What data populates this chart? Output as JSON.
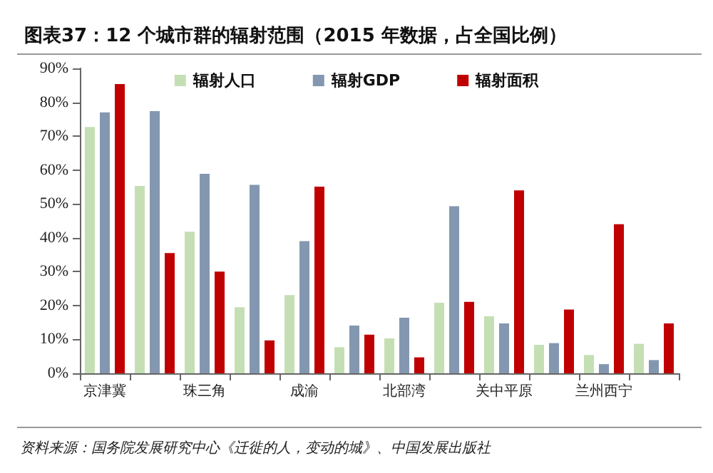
{
  "chart_data": {
    "type": "bar",
    "title": "图表37：12 个城市群的辐射范围（2015 年数据，占全国比例）",
    "categories": [
      "京津冀",
      null,
      "珠三角",
      null,
      "成渝",
      null,
      "北部湾",
      null,
      "关中平原",
      null,
      "兰州西宁",
      null
    ],
    "series": [
      {
        "name": "辐射人口",
        "color": "#c5dfb4",
        "values": [
          72.7,
          55.3,
          41.8,
          19.5,
          23.1,
          7.7,
          10.3,
          20.8,
          16.8,
          8.4,
          5.4,
          8.7
        ]
      },
      {
        "name": "辐射GDP",
        "color": "#8497b0",
        "values": [
          77.0,
          77.4,
          58.9,
          55.6,
          39.0,
          14.1,
          16.4,
          49.3,
          14.7,
          8.9,
          2.7,
          3.9
        ]
      },
      {
        "name": "辐射面积",
        "color": "#c00000",
        "values": [
          85.4,
          35.5,
          30.0,
          9.7,
          55.1,
          11.4,
          4.7,
          21.1,
          54.0,
          18.8,
          44.0,
          14.7
        ]
      }
    ],
    "ylim": [
      0,
      90
    ],
    "yticks": [
      {
        "value": 0,
        "label": "0%"
      },
      {
        "value": 10,
        "label": "10%"
      },
      {
        "value": 20,
        "label": "20%"
      },
      {
        "value": 30,
        "label": "30%"
      },
      {
        "value": 40,
        "label": "40%"
      },
      {
        "value": 50,
        "label": "50%"
      },
      {
        "value": 60,
        "label": "60%"
      },
      {
        "value": 70,
        "label": "70%"
      },
      {
        "value": 80,
        "label": "80%"
      },
      {
        "value": 90,
        "label": "90%"
      }
    ],
    "grid": false,
    "legend": "top",
    "annotations": [
      "资料来源：国务院发展研究中心《迁徙的人，变动的城》、中国发展出版社"
    ]
  }
}
